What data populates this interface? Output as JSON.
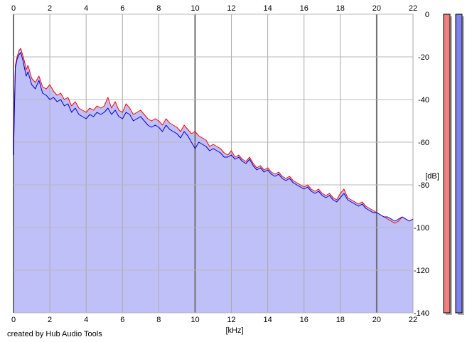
{
  "footer": {
    "credit": "created by Hub Audio Tools"
  },
  "chart_data": {
    "type": "line",
    "title": "",
    "xlabel": "[kHz]",
    "ylabel": "[dB]",
    "xlim": [
      0,
      22
    ],
    "ylim": [
      -140,
      0
    ],
    "x_ticks": [
      0,
      2,
      4,
      6,
      8,
      10,
      12,
      14,
      16,
      18,
      20,
      22
    ],
    "y_ticks": [
      0,
      -20,
      -40,
      -60,
      -80,
      -100,
      -120,
      -140
    ],
    "grid": true,
    "legend": "none",
    "series": [
      {
        "color": "#ff0000",
        "x": [
          0,
          0.1,
          0.2,
          0.3,
          0.4,
          0.5,
          0.6,
          0.7,
          0.8,
          1,
          1.2,
          1.4,
          1.6,
          1.8,
          2,
          2.2,
          2.4,
          2.6,
          2.8,
          3,
          3.2,
          3.4,
          3.6,
          3.8,
          4,
          4.2,
          4.4,
          4.6,
          4.8,
          5,
          5.2,
          5.4,
          5.6,
          5.8,
          6,
          6.2,
          6.4,
          6.6,
          6.8,
          7,
          7.2,
          7.4,
          7.6,
          7.8,
          8,
          8.2,
          8.4,
          8.6,
          8.8,
          9,
          9.2,
          9.4,
          9.6,
          9.8,
          10,
          10.2,
          10.4,
          10.6,
          10.8,
          11,
          11.2,
          11.4,
          11.6,
          11.8,
          12,
          12.2,
          12.4,
          12.6,
          12.8,
          13,
          13.2,
          13.4,
          13.6,
          13.8,
          14,
          14.2,
          14.4,
          14.6,
          14.8,
          15,
          15.2,
          15.4,
          15.6,
          15.8,
          16,
          16.2,
          16.4,
          16.6,
          16.8,
          17,
          17.2,
          17.4,
          17.6,
          17.8,
          18,
          18.2,
          18.4,
          18.6,
          18.8,
          19,
          19.2,
          19.4,
          19.6,
          19.8,
          20,
          20.2,
          20.4,
          20.6,
          20.8,
          21,
          21.2,
          21.4,
          21.6,
          21.8,
          22
        ],
        "values": [
          -62,
          -24,
          -20,
          -17,
          -16,
          -19,
          -22,
          -26,
          -24,
          -30,
          -32,
          -29,
          -34,
          -35,
          -33,
          -36,
          -38,
          -37,
          -40,
          -39,
          -43,
          -41,
          -44,
          -45,
          -46,
          -44,
          -45,
          -43,
          -44,
          -43,
          -39,
          -44,
          -41,
          -45,
          -46,
          -42,
          -44,
          -47,
          -46,
          -45,
          -47,
          -49,
          -50,
          -49,
          -50,
          -52,
          -49,
          -51,
          -52,
          -53,
          -55,
          -52,
          -54,
          -56,
          -55,
          -57,
          -58,
          -59,
          -62,
          -61,
          -62,
          -63,
          -65,
          -66,
          -64,
          -67,
          -66,
          -68,
          -69,
          -67,
          -70,
          -72,
          -71,
          -73,
          -72,
          -74,
          -75,
          -74,
          -76,
          -77,
          -76,
          -78,
          -79,
          -80,
          -81,
          -80,
          -82,
          -83,
          -82,
          -84,
          -85,
          -84,
          -86,
          -87,
          -84,
          -82,
          -86,
          -87,
          -88,
          -89,
          -88,
          -90,
          -91,
          -92,
          -93,
          -94,
          -95,
          -96,
          -97,
          -98,
          -97,
          -95,
          -96,
          -97,
          -96
        ]
      },
      {
        "color": "#0000cc",
        "x": [
          0,
          0.1,
          0.2,
          0.3,
          0.4,
          0.5,
          0.6,
          0.7,
          0.8,
          1,
          1.2,
          1.4,
          1.6,
          1.8,
          2,
          2.2,
          2.4,
          2.6,
          2.8,
          3,
          3.2,
          3.4,
          3.6,
          3.8,
          4,
          4.2,
          4.4,
          4.6,
          4.8,
          5,
          5.2,
          5.4,
          5.6,
          5.8,
          6,
          6.2,
          6.4,
          6.6,
          6.8,
          7,
          7.2,
          7.4,
          7.6,
          7.8,
          8,
          8.2,
          8.4,
          8.6,
          8.8,
          9,
          9.2,
          9.4,
          9.6,
          9.8,
          10,
          10.2,
          10.4,
          10.6,
          10.8,
          11,
          11.2,
          11.4,
          11.6,
          11.8,
          12,
          12.2,
          12.4,
          12.6,
          12.8,
          13,
          13.2,
          13.4,
          13.6,
          13.8,
          14,
          14.2,
          14.4,
          14.6,
          14.8,
          15,
          15.2,
          15.4,
          15.6,
          15.8,
          16,
          16.2,
          16.4,
          16.6,
          16.8,
          17,
          17.2,
          17.4,
          17.6,
          17.8,
          18,
          18.2,
          18.4,
          18.6,
          18.8,
          19,
          19.2,
          19.4,
          19.6,
          19.8,
          20,
          20.2,
          20.4,
          20.6,
          20.8,
          21,
          21.2,
          21.4,
          21.6,
          21.8,
          22
        ],
        "values": [
          -66,
          -25,
          -21,
          -19,
          -18,
          -21,
          -25,
          -29,
          -27,
          -33,
          -35,
          -31,
          -37,
          -38,
          -40,
          -39,
          -41,
          -40,
          -43,
          -42,
          -46,
          -44,
          -47,
          -48,
          -49,
          -47,
          -48,
          -46,
          -47,
          -46,
          -44,
          -47,
          -45,
          -48,
          -49,
          -46,
          -47,
          -50,
          -49,
          -48,
          -50,
          -52,
          -53,
          -52,
          -53,
          -55,
          -52,
          -54,
          -55,
          -56,
          -58,
          -55,
          -57,
          -60,
          -63,
          -60,
          -61,
          -62,
          -64,
          -63,
          -64,
          -65,
          -67,
          -67,
          -66,
          -68,
          -67,
          -69,
          -70,
          -68,
          -71,
          -73,
          -72,
          -74,
          -73,
          -75,
          -76,
          -75,
          -77,
          -78,
          -77,
          -79,
          -80,
          -81,
          -82,
          -81,
          -83,
          -84,
          -83,
          -85,
          -86,
          -85,
          -87,
          -88,
          -86,
          -84,
          -87,
          -88,
          -89,
          -90,
          -89,
          -91,
          -92,
          -93,
          -93,
          -94,
          -95,
          -95,
          -96,
          -97,
          -96,
          -95,
          -96,
          -97,
          -96
        ]
      }
    ],
    "level_meters": [
      {
        "color": "#f08080",
        "level": 1.0
      },
      {
        "color": "#8080f0",
        "level": 1.0
      }
    ]
  }
}
